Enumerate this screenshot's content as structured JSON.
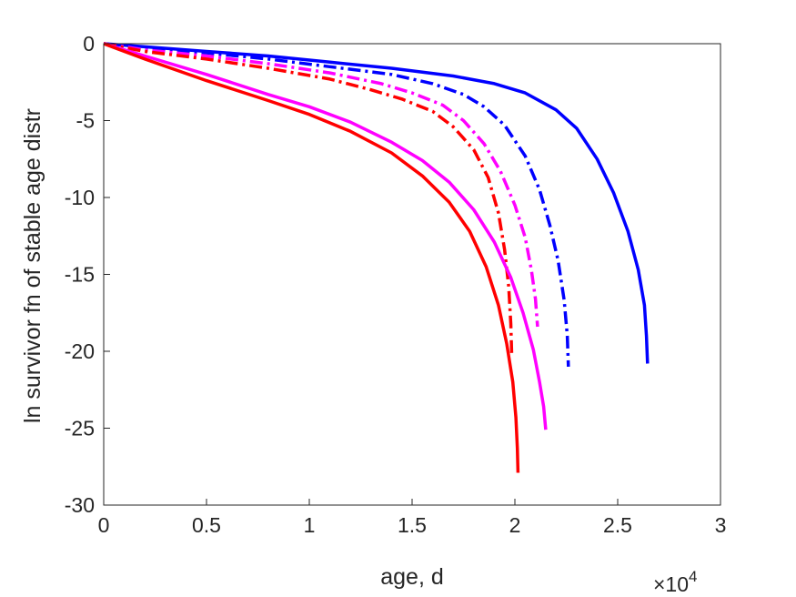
{
  "chart_data": {
    "type": "line",
    "title": "",
    "xlabel": "age, d",
    "ylabel": "ln survivor fn of stable age distr",
    "x_multiplier": {
      "base": "×10",
      "exponent": "4"
    },
    "xlim": [
      0,
      30000
    ],
    "ylim": [
      -30,
      0
    ],
    "xticks": [
      0,
      5000,
      10000,
      15000,
      20000,
      25000,
      30000
    ],
    "xtick_labels": [
      "0",
      "0.5",
      "1",
      "1.5",
      "2",
      "2.5",
      "3"
    ],
    "yticks": [
      0,
      -5,
      -10,
      -15,
      -20,
      -25,
      -30
    ],
    "ytick_labels": [
      "0",
      "-5",
      "-10",
      "-15",
      "-20",
      "-25",
      "-30"
    ],
    "grid": false,
    "legend": "none",
    "series": [
      {
        "color": "#0000ff",
        "style": "solid",
        "x": [
          0,
          2000,
          5000,
          8000,
          11000,
          14000,
          17000,
          19000,
          20500,
          22000,
          23000,
          24000,
          24800,
          25500,
          26000,
          26300,
          26400,
          26450
        ],
        "y": [
          0,
          -0.2,
          -0.5,
          -0.8,
          -1.2,
          -1.6,
          -2.1,
          -2.6,
          -3.2,
          -4.3,
          -5.5,
          -7.5,
          -9.7,
          -12.2,
          -14.7,
          -17.0,
          -19.0,
          -20.8
        ]
      },
      {
        "color": "#0000ff",
        "style": "dashdot",
        "x": [
          0,
          2000,
          5000,
          8000,
          11000,
          14000,
          16000,
          17500,
          18500,
          19500,
          20500,
          21200,
          21700,
          22100,
          22400,
          22550,
          22600
        ],
        "y": [
          0,
          -0.3,
          -0.6,
          -1.0,
          -1.5,
          -2.0,
          -2.6,
          -3.3,
          -4.1,
          -5.3,
          -7.3,
          -9.5,
          -11.8,
          -14.1,
          -16.7,
          -19.0,
          -21.0
        ]
      },
      {
        "color": "#ff00ff",
        "style": "dashdot",
        "x": [
          0,
          2000,
          5000,
          8000,
          11000,
          13500,
          15000,
          16500,
          17500,
          18500,
          19300,
          20000,
          20500,
          20800,
          21000,
          21100
        ],
        "y": [
          0,
          -0.4,
          -0.8,
          -1.3,
          -1.9,
          -2.6,
          -3.2,
          -4.0,
          -5.0,
          -6.5,
          -8.3,
          -10.5,
          -12.6,
          -14.7,
          -16.6,
          -18.4
        ]
      },
      {
        "color": "#ff0000",
        "style": "dashdot",
        "x": [
          0,
          2000,
          5000,
          8000,
          11000,
          13000,
          14500,
          16000,
          17000,
          18000,
          18700,
          19200,
          19500,
          19700,
          19800,
          19850
        ],
        "y": [
          0,
          -0.5,
          -1.0,
          -1.6,
          -2.3,
          -3.0,
          -3.6,
          -4.4,
          -5.4,
          -6.9,
          -8.7,
          -11.0,
          -13.4,
          -15.8,
          -18.2,
          -20.4
        ]
      },
      {
        "color": "#ff00ff",
        "style": "solid",
        "x": [
          0,
          2000,
          5000,
          8000,
          10000,
          12000,
          14000,
          15500,
          16800,
          18000,
          19000,
          19800,
          20400,
          20900,
          21200,
          21400,
          21500
        ],
        "y": [
          0,
          -0.8,
          -2.0,
          -3.3,
          -4.1,
          -5.1,
          -6.4,
          -7.6,
          -9.0,
          -10.8,
          -12.9,
          -15.2,
          -17.5,
          -19.9,
          -22.0,
          -23.6,
          -25.1
        ]
      },
      {
        "color": "#ff0000",
        "style": "solid",
        "x": [
          0,
          2000,
          5000,
          8000,
          10000,
          12000,
          14000,
          15500,
          16800,
          17800,
          18600,
          19200,
          19600,
          19900,
          20050,
          20120,
          20150
        ],
        "y": [
          0,
          -1.0,
          -2.4,
          -3.7,
          -4.6,
          -5.7,
          -7.1,
          -8.6,
          -10.3,
          -12.2,
          -14.5,
          -17.0,
          -19.5,
          -22.0,
          -24.3,
          -26.3,
          -27.9
        ]
      }
    ]
  }
}
